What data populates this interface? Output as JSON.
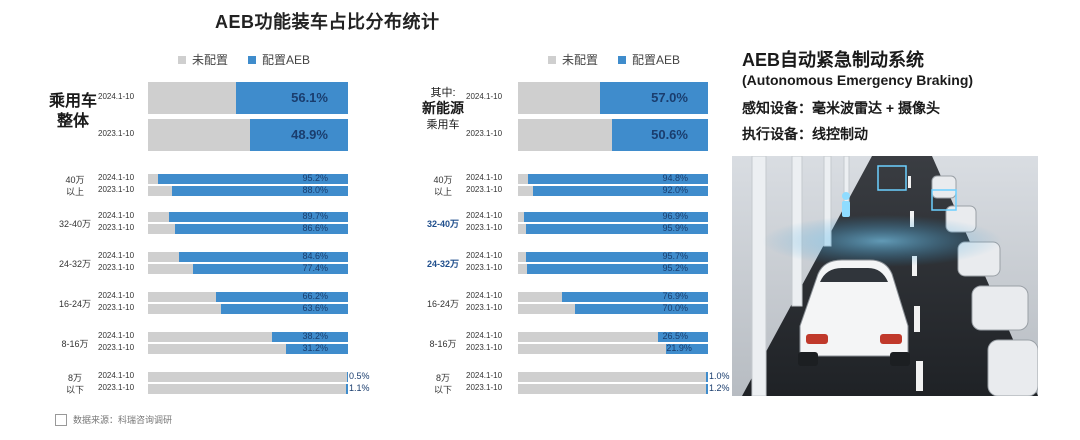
{
  "title": "AEB功能装车占比分布统计",
  "legend": {
    "unconfigured": "未配置",
    "configured": "配置AEB"
  },
  "colors": {
    "unconfigured": "#cfcfcf",
    "configured": "#3f8ccc"
  },
  "panels": {
    "left": {
      "label_line1": "乘用车",
      "label_line2": "整体"
    },
    "right": {
      "label_line1": "其中:",
      "label_line2": "新能源",
      "label_line3": "乘用车"
    }
  },
  "right_text": {
    "title": "AEB自动紧急制动系统",
    "subtitle": "(Autonomous Emergency Braking)",
    "sensor": "感知设备：毫米波雷达 + 摄像头",
    "actuator": "执行设备：线控制动"
  },
  "source": "数据来源：科瑞咨询调研",
  "chart_data": [
    {
      "type": "bar",
      "title": "",
      "panel": "乘用车整体",
      "series": [
        {
          "name": "配置AEB"
        },
        {
          "name": "未配置"
        }
      ],
      "unit": "%",
      "overall": {
        "periods": [
          "2024.1-10",
          "2023.1-10"
        ],
        "values": [
          56.1,
          48.9
        ],
        "labels": [
          "56.1%",
          "48.9%"
        ]
      },
      "groups": [
        {
          "label": [
            "40万",
            "以上"
          ],
          "periods": [
            "2024.1-10",
            "2023.1-10"
          ],
          "values": [
            95.2,
            88.0
          ],
          "labels": [
            "95.2%",
            "88.0%"
          ]
        },
        {
          "label": [
            "32-40万"
          ],
          "periods": [
            "2024.1-10",
            "2023.1-10"
          ],
          "values": [
            89.7,
            86.6
          ],
          "labels": [
            "89.7%",
            "86.6%"
          ]
        },
        {
          "label": [
            "24-32万"
          ],
          "periods": [
            "2024.1-10",
            "2023.1-10"
          ],
          "values": [
            84.6,
            77.4
          ],
          "labels": [
            "84.6%",
            "77.4%"
          ]
        },
        {
          "label": [
            "16-24万"
          ],
          "periods": [
            "2024.1-10",
            "2023.1-10"
          ],
          "values": [
            66.2,
            63.6
          ],
          "labels": [
            "66.2%",
            "63.6%"
          ]
        },
        {
          "label": [
            "8-16万"
          ],
          "periods": [
            "2024.1-10",
            "2023.1-10"
          ],
          "values": [
            38.2,
            31.2
          ],
          "labels": [
            "38.2%",
            "31.2%"
          ]
        },
        {
          "label": [
            "8万",
            "以下"
          ],
          "periods": [
            "2024.1-10",
            "2023.1-10"
          ],
          "values": [
            0.5,
            1.1
          ],
          "labels": [
            "0.5%",
            "1.1%"
          ]
        }
      ]
    },
    {
      "type": "bar",
      "title": "",
      "panel": "新能源乘用车",
      "series": [
        {
          "name": "配置AEB"
        },
        {
          "name": "未配置"
        }
      ],
      "unit": "%",
      "overall": {
        "periods": [
          "2024.1-10",
          "2023.1-10"
        ],
        "values": [
          57.0,
          50.6
        ],
        "labels": [
          "57.0%",
          "50.6%"
        ]
      },
      "groups": [
        {
          "label": [
            "40万",
            "以上"
          ],
          "periods": [
            "2024.1-10",
            "2023.1-10"
          ],
          "values": [
            94.8,
            92.0
          ],
          "labels": [
            "94.8%",
            "92.0%"
          ]
        },
        {
          "label": [
            "32-40万"
          ],
          "periods": [
            "2024.1-10",
            "2023.1-10"
          ],
          "values": [
            96.9,
            95.9
          ],
          "labels": [
            "96.9%",
            "95.9%"
          ]
        },
        {
          "label": [
            "24-32万"
          ],
          "periods": [
            "2024.1-10",
            "2023.1-10"
          ],
          "values": [
            95.7,
            95.2
          ],
          "labels": [
            "95.7%",
            "95.2%"
          ]
        },
        {
          "label": [
            "16-24万"
          ],
          "periods": [
            "2024.1-10",
            "2023.1-10"
          ],
          "values": [
            76.9,
            70.0
          ],
          "labels": [
            "76.9%",
            "70.0%"
          ]
        },
        {
          "label": [
            "8-16万"
          ],
          "periods": [
            "2024.1-10",
            "2023.1-10"
          ],
          "values": [
            26.5,
            21.9
          ],
          "labels": [
            "26.5%",
            "21.9%"
          ]
        },
        {
          "label": [
            "8万",
            "以下"
          ],
          "periods": [
            "2024.1-10",
            "2023.1-10"
          ],
          "values": [
            1.0,
            1.2
          ],
          "labels": [
            "1.0%",
            "1.2%"
          ]
        }
      ]
    }
  ]
}
